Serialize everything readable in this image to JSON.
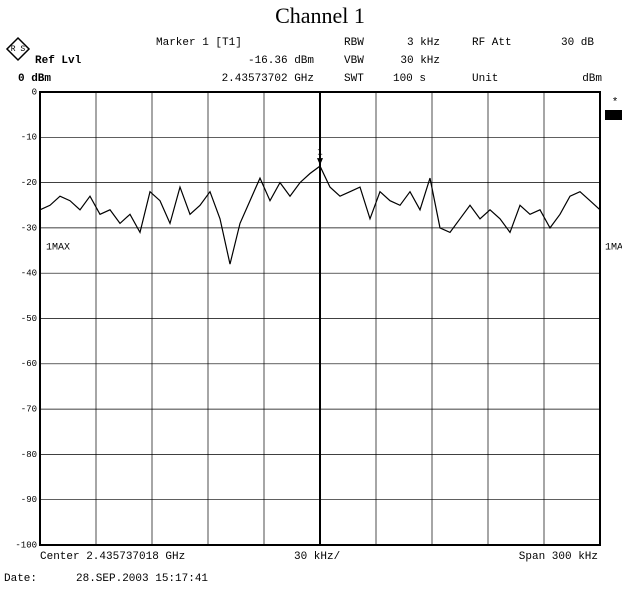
{
  "chart_data": {
    "type": "line",
    "title": "Channel 1",
    "header": {
      "ref_lvl_label": "Ref Lvl",
      "ref_lvl": "0 dBm",
      "marker_name": "Marker 1 [T1]",
      "marker_level": "-16.36 dBm",
      "marker_freq": "2.43573702 GHz",
      "rbw_label": "RBW",
      "rbw": "3 kHz",
      "vbw_label": "VBW",
      "vbw": "30 kHz",
      "swt_label": "SWT",
      "swt": "100 s",
      "rf_att_label": "RF Att",
      "rf_att": "30 dB",
      "unit_label": "Unit",
      "unit": "dBm"
    },
    "trace_label": "1MAX",
    "trace_label_right": "1MA",
    "marker_label": "1",
    "star": "*",
    "center": "Center 2.435737018 GHz",
    "per_div": "30 kHz/",
    "span": "Span 300 kHz",
    "date_label": "Date:",
    "date": "28.SEP.2003  15:17:41",
    "color": "#000000",
    "values": [
      -26,
      -25,
      -23,
      -24,
      -26,
      -23,
      -27,
      -26,
      -29,
      -27,
      -31,
      -22,
      -24,
      -29,
      -21,
      -27,
      -25,
      -22,
      -28,
      -38,
      -29,
      -24,
      -19,
      -24,
      -20,
      -23,
      -20,
      -18,
      -16.36,
      -21,
      -23,
      -22,
      -21,
      -28,
      -22,
      -24,
      -25,
      -22,
      -26,
      -19,
      -30,
      -31,
      -28,
      -25,
      -28,
      -26,
      -28,
      -31,
      -25,
      -27,
      -26,
      -30,
      -27,
      -23,
      -22,
      -24,
      -26
    ],
    "ylim": [
      -100,
      0
    ],
    "yticks": [
      0,
      -10,
      -20,
      -30,
      -40,
      -50,
      -60,
      -70,
      -80,
      -90,
      -100
    ],
    "grid": true
  }
}
